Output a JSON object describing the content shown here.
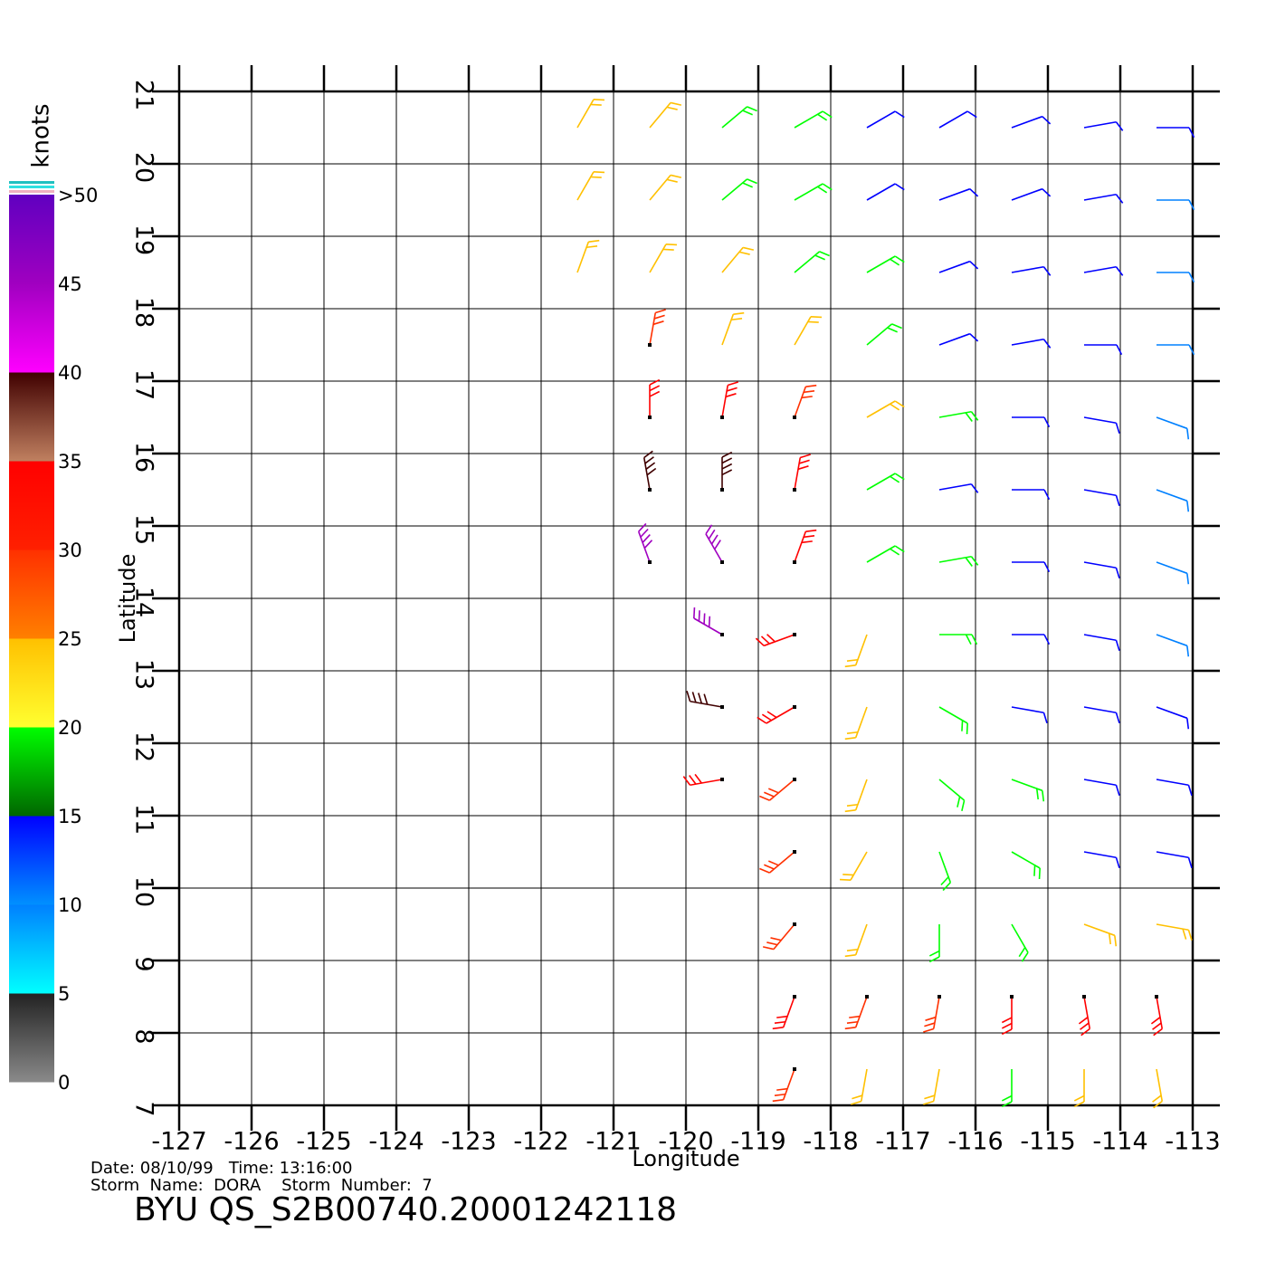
{
  "chart_data": {
    "type": "wind-barbs",
    "title": "BYU  QS_S2B00740.20001242118",
    "date_line": "Date: 08/10/99   Time: 13:16:00",
    "storm_line": "Storm  Name:  DORA    Storm  Number:  7",
    "x_label": "Longitude",
    "y_label": "Latitude",
    "xlim": [
      -127,
      -113
    ],
    "ylim": [
      7,
      21
    ],
    "xticks": [
      -127,
      -126,
      -125,
      -124,
      -123,
      -122,
      -121,
      -120,
      -119,
      -118,
      -117,
      -116,
      -115,
      -114,
      -113
    ],
    "yticks": [
      7,
      8,
      9,
      10,
      11,
      12,
      13,
      14,
      15,
      16,
      17,
      18,
      19,
      20,
      21
    ],
    "grid": true,
    "colorbar": {
      "label": "knots",
      "lim": [
        0,
        50
      ],
      "ticks": [
        0,
        5,
        10,
        15,
        20,
        25,
        30,
        35,
        40,
        45,
        {
          "value": 50,
          "label": ">50"
        }
      ],
      "colors": [
        [
          "#8a8a8a",
          "#222222"
        ],
        [
          "#00ffff",
          "#0080ff"
        ],
        [
          "#0090ff",
          "#0000ff"
        ],
        [
          "#006600",
          "#00ff00"
        ],
        [
          "#ffff30",
          "#ffc000"
        ],
        [
          "#ff8000",
          "#ff3000"
        ],
        [
          "#ff2000",
          "#ff0000"
        ],
        [
          "#c08060",
          "#400000"
        ],
        [
          "#ff00ff",
          "#a000c0"
        ],
        [
          "#a000c0",
          "#6000c0"
        ]
      ]
    },
    "wind": {
      "lon": [
        -121.5,
        -120.5,
        -119.5,
        -118.5,
        -117.5,
        -116.5,
        -115.5,
        -114.5,
        -113.5,
        -121.5,
        -120.5,
        -119.5,
        -118.5,
        -117.5,
        -116.5,
        -115.5,
        -114.5,
        -113.5,
        -121.5,
        -120.5,
        -119.5,
        -118.5,
        -117.5,
        -116.5,
        -115.5,
        -114.5,
        -113.5,
        -120.5,
        -119.5,
        -118.5,
        -117.5,
        -116.5,
        -115.5,
        -114.5,
        -113.5,
        -120.5,
        -119.5,
        -118.5,
        -117.5,
        -116.5,
        -115.5,
        -114.5,
        -113.5,
        -120.5,
        -119.5,
        -118.5,
        -117.5,
        -116.5,
        -115.5,
        -114.5,
        -113.5,
        -120.5,
        -119.5,
        -118.5,
        -117.5,
        -116.5,
        -115.5,
        -114.5,
        -113.5,
        -119.5,
        -118.5,
        -117.5,
        -116.5,
        -115.5,
        -114.5,
        -113.5,
        -119.5,
        -118.5,
        -117.5,
        -116.5,
        -115.5,
        -114.5,
        -113.5,
        -119.5,
        -118.5,
        -117.5,
        -116.5,
        -115.5,
        -114.5,
        -113.5,
        -118.5,
        -117.5,
        -116.5,
        -115.5,
        -114.5,
        -113.5,
        -118.5,
        -117.5,
        -116.5,
        -115.5,
        -114.5,
        -113.5,
        -118.5,
        -117.5,
        -116.5,
        -115.5,
        -114.5,
        -113.5,
        -118.5,
        -117.5,
        -116.5,
        -115.5,
        -114.5,
        -113.5
      ],
      "lat": [
        20.5,
        20.5,
        20.5,
        20.5,
        20.5,
        20.5,
        20.5,
        20.5,
        20.5,
        19.5,
        19.5,
        19.5,
        19.5,
        19.5,
        19.5,
        19.5,
        19.5,
        19.5,
        18.5,
        18.5,
        18.5,
        18.5,
        18.5,
        18.5,
        18.5,
        18.5,
        18.5,
        17.5,
        17.5,
        17.5,
        17.5,
        17.5,
        17.5,
        17.5,
        17.5,
        16.5,
        16.5,
        16.5,
        16.5,
        16.5,
        16.5,
        16.5,
        16.5,
        15.5,
        15.5,
        15.5,
        15.5,
        15.5,
        15.5,
        15.5,
        15.5,
        14.5,
        14.5,
        14.5,
        14.5,
        14.5,
        14.5,
        14.5,
        14.5,
        13.5,
        13.5,
        13.5,
        13.5,
        13.5,
        13.5,
        13.5,
        12.5,
        12.5,
        12.5,
        12.5,
        12.5,
        12.5,
        12.5,
        11.5,
        11.5,
        11.5,
        11.5,
        11.5,
        11.5,
        11.5,
        10.5,
        10.5,
        10.5,
        10.5,
        10.5,
        10.5,
        9.5,
        9.5,
        9.5,
        9.5,
        9.5,
        9.5,
        8.5,
        8.5,
        8.5,
        8.5,
        8.5,
        8.5,
        7.5,
        7.5,
        7.5,
        7.5,
        7.5,
        7.5
      ],
      "speed": [
        22,
        21,
        18,
        16,
        13,
        12,
        14,
        11,
        10,
        23,
        21,
        19,
        16,
        14,
        12,
        12,
        11,
        9,
        24,
        22,
        20,
        18,
        15,
        13,
        12,
        11,
        9,
        27,
        24,
        22,
        19,
        14,
        12,
        11,
        8,
        34,
        31,
        26,
        21,
        15,
        12,
        10,
        8,
        38,
        36,
        30,
        19,
        14,
        12,
        10,
        7,
        42,
        44,
        33,
        18,
        16,
        13,
        11,
        7,
        42,
        34,
        24,
        17,
        13,
        11,
        8,
        36,
        31,
        22,
        18,
        14,
        12,
        10,
        33,
        27,
        21,
        18,
        15,
        12,
        11,
        27,
        21,
        18,
        15,
        13,
        12,
        28,
        22,
        19,
        17,
        24,
        21,
        31,
        28,
        29,
        31,
        32,
        33,
        27,
        22,
        21,
        19,
        21,
        23
      ],
      "direction": [
        30,
        40,
        50,
        60,
        60,
        60,
        70,
        80,
        90,
        30,
        40,
        50,
        60,
        60,
        70,
        70,
        80,
        90,
        20,
        30,
        40,
        50,
        60,
        70,
        80,
        80,
        90,
        10,
        20,
        30,
        50,
        70,
        80,
        90,
        90,
        0,
        10,
        20,
        60,
        80,
        90,
        100,
        110,
        350,
        0,
        10,
        60,
        80,
        90,
        100,
        110,
        340,
        330,
        20,
        60,
        80,
        90,
        100,
        110,
        300,
        250,
        200,
        90,
        90,
        100,
        110,
        280,
        240,
        200,
        120,
        100,
        100,
        110,
        260,
        230,
        200,
        130,
        110,
        100,
        100,
        230,
        210,
        160,
        120,
        100,
        100,
        220,
        200,
        180,
        150,
        110,
        100,
        200,
        200,
        190,
        180,
        170,
        170,
        200,
        190,
        190,
        180,
        180,
        170
      ]
    }
  }
}
